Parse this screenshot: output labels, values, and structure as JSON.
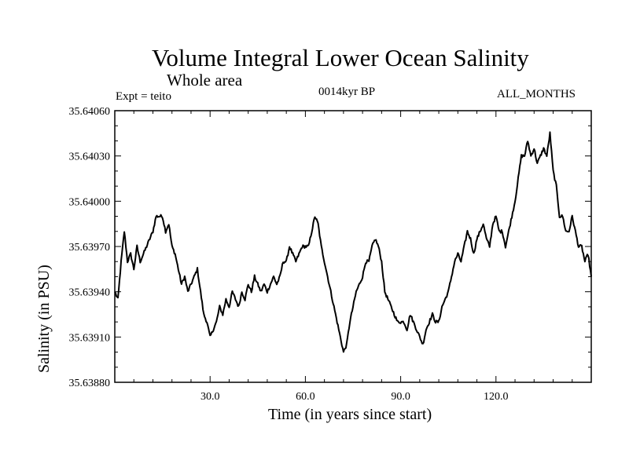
{
  "chart_data": {
    "type": "line",
    "title": "Volume Integral Lower Ocean Salinity",
    "subtitle": "Whole area",
    "experiment": "Expt = teito",
    "period": "0014kyr BP",
    "months": "ALL_MONTHS",
    "xlabel": "Time (in years since start)",
    "ylabel": "Salinity (in PSU)",
    "xlim": [
      0,
      150
    ],
    "ylim": [
      35.6388,
      35.6406
    ],
    "xticks": [
      30,
      60,
      90,
      120
    ],
    "xtick_labels": [
      "30.0",
      "60.0",
      "90.0",
      "120.0"
    ],
    "yticks": [
      35.6388,
      35.6391,
      35.6394,
      35.6397,
      35.64,
      35.6403,
      35.6406
    ],
    "ytick_labels": [
      "35.63880",
      "35.63910",
      "35.63940",
      "35.63970",
      "35.64000",
      "35.64030",
      "35.64060"
    ],
    "grid": false,
    "series": [
      {
        "name": "Salinity",
        "x": [
          0,
          1,
          2,
          3,
          4,
          5,
          6,
          7,
          8,
          9,
          10,
          11,
          12,
          13,
          14,
          15,
          16,
          17,
          18,
          19,
          20,
          21,
          22,
          23,
          24,
          25,
          26,
          27,
          28,
          29,
          30,
          31,
          32,
          33,
          34,
          35,
          36,
          37,
          38,
          39,
          40,
          41,
          42,
          43,
          44,
          45,
          46,
          47,
          48,
          49,
          50,
          51,
          52,
          53,
          54,
          55,
          56,
          57,
          58,
          59,
          60,
          61,
          62,
          63,
          64,
          65,
          66,
          67,
          68,
          69,
          70,
          71,
          72,
          73,
          74,
          75,
          76,
          77,
          78,
          79,
          80,
          81,
          82,
          83,
          84,
          85,
          86,
          87,
          88,
          89,
          90,
          91,
          92,
          93,
          94,
          95,
          96,
          97,
          98,
          99,
          100,
          101,
          102,
          103,
          104,
          105,
          106,
          107,
          108,
          109,
          110,
          111,
          112,
          113,
          114,
          115,
          116,
          117,
          118,
          119,
          120,
          121,
          122,
          123,
          124,
          125,
          126,
          127,
          128,
          129,
          130,
          131,
          132,
          133,
          134,
          135,
          136,
          137,
          138,
          139,
          140,
          141,
          142,
          143,
          144,
          145,
          146,
          147,
          148,
          149,
          150
        ],
        "values": [
          35.6394,
          35.63935,
          35.6396,
          35.6398,
          35.6396,
          35.63965,
          35.63955,
          35.6397,
          35.6396,
          35.63965,
          35.6397,
          35.63975,
          35.6398,
          35.6399,
          35.6399,
          35.6399,
          35.6398,
          35.63985,
          35.6397,
          35.63965,
          35.63955,
          35.63945,
          35.6395,
          35.6394,
          35.63945,
          35.6395,
          35.63955,
          35.6394,
          35.63925,
          35.6392,
          35.6391,
          35.63915,
          35.6392,
          35.6393,
          35.63925,
          35.63935,
          35.6393,
          35.6394,
          35.63935,
          35.6393,
          35.6394,
          35.63935,
          35.63945,
          35.6394,
          35.6395,
          35.63945,
          35.6394,
          35.63945,
          35.6394,
          35.63945,
          35.6395,
          35.63945,
          35.6395,
          35.6396,
          35.6396,
          35.6397,
          35.63965,
          35.6396,
          35.63965,
          35.6397,
          35.6397,
          35.6397,
          35.6398,
          35.6399,
          35.63985,
          35.6397,
          35.6396,
          35.6395,
          35.6394,
          35.6393,
          35.6392,
          35.6391,
          35.639,
          35.63905,
          35.6392,
          35.6393,
          35.6394,
          35.63945,
          35.6395,
          35.6396,
          35.6396,
          35.6397,
          35.63975,
          35.6397,
          35.6396,
          35.6394,
          35.63935,
          35.6393,
          35.63925,
          35.6392,
          35.6392,
          35.6392,
          35.63915,
          35.63925,
          35.6392,
          35.63915,
          35.6391,
          35.63905,
          35.63915,
          35.6392,
          35.63925,
          35.6392,
          35.6392,
          35.6393,
          35.63935,
          35.6394,
          35.6395,
          35.6396,
          35.63965,
          35.6396,
          35.6397,
          35.6398,
          35.63975,
          35.63965,
          35.63975,
          35.6398,
          35.63985,
          35.63975,
          35.6397,
          35.63985,
          35.6399,
          35.6398,
          35.6398,
          35.6397,
          35.6398,
          35.6399,
          35.64,
          35.64015,
          35.6403,
          35.6403,
          35.6404,
          35.6403,
          35.64035,
          35.64025,
          35.6403,
          35.64035,
          35.6403,
          35.64045,
          35.6402,
          35.6401,
          35.6399,
          35.6399,
          35.6398,
          35.6398,
          35.6399,
          35.6398,
          35.6397,
          35.6397,
          35.6396,
          35.63965,
          35.6395
        ]
      }
    ]
  }
}
